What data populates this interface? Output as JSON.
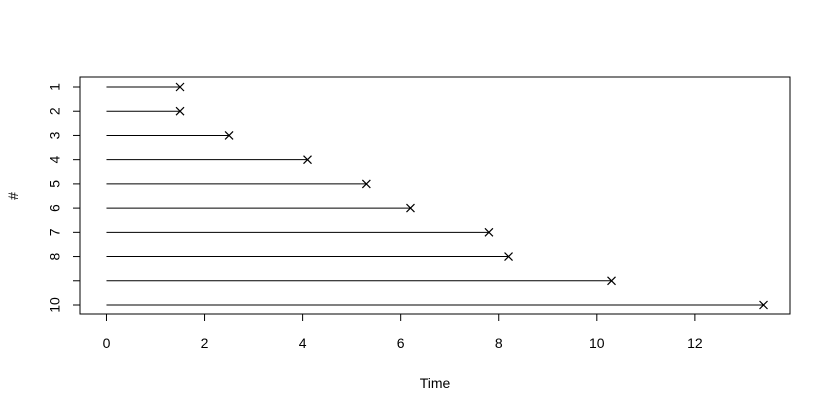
{
  "chart_data": {
    "type": "swimmer",
    "x_label": "Time",
    "y_label": "#",
    "categories": [
      "1",
      "2",
      "3",
      "4",
      "5",
      "6",
      "7",
      "8",
      null,
      "10"
    ],
    "values": [
      1.5,
      1.5,
      2.5,
      4.1,
      5.3,
      6.2,
      7.8,
      8.2,
      10.3,
      13.4
    ],
    "color": "#000000",
    "xlim": [
      -0.54,
      13.94
    ],
    "xticks": [
      0,
      2,
      4,
      6,
      8,
      10,
      12
    ]
  }
}
